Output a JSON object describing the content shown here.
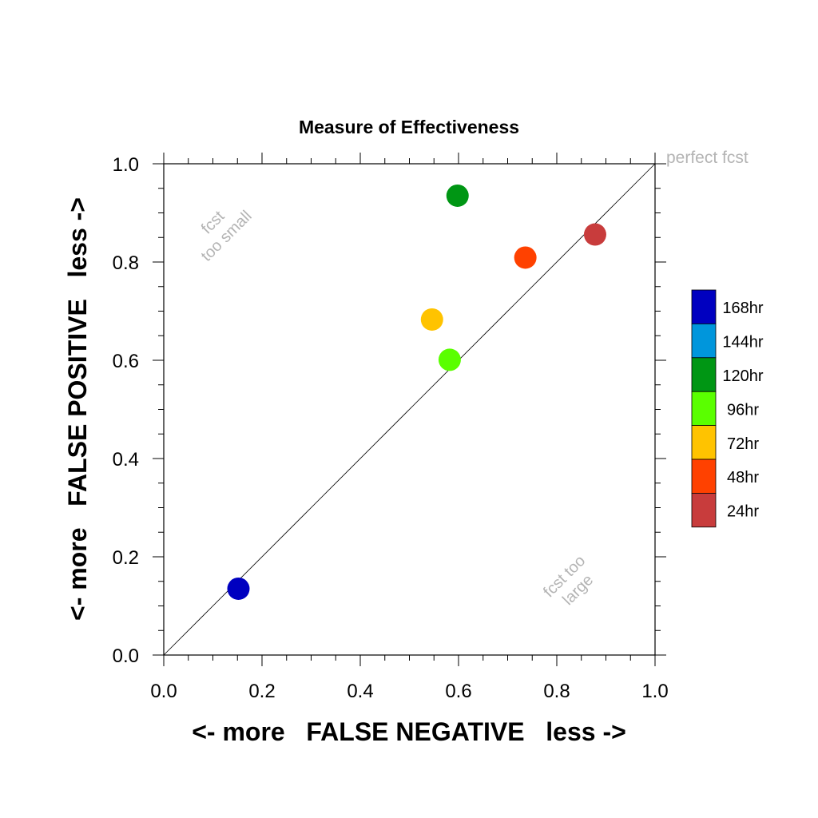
{
  "chart_data": {
    "type": "scatter",
    "title": "Measure of Effectiveness",
    "xlabel": "<- more   FALSE NEGATIVE   less ->",
    "ylabel": "<- more   FALSE POSITIVE   less ->",
    "xlim": [
      0.0,
      1.0
    ],
    "ylim": [
      0.0,
      1.0
    ],
    "x_ticks": [
      "0.0",
      "0.2",
      "0.4",
      "0.6",
      "0.8",
      "1.0"
    ],
    "y_ticks": [
      "0.0",
      "0.2",
      "0.4",
      "0.6",
      "0.8",
      "1.0"
    ],
    "grid": false,
    "reference_line": "diagonal y = x",
    "annotations": {
      "perfect": "perfect fcst",
      "too_small_line1": "fcst",
      "too_small_line2": "too small",
      "too_large_line1": "fcst too",
      "too_large_line2": "large"
    },
    "legend": {
      "placement": "right",
      "entries": [
        {
          "label": "168hr",
          "color": "#0000c0"
        },
        {
          "label": "144hr",
          "color": "#0096dc"
        },
        {
          "label": "120hr",
          "color": "#009614"
        },
        {
          "label": "96hr",
          "color": "#5aff00"
        },
        {
          "label": "72hr",
          "color": "#ffc300"
        },
        {
          "label": "48hr",
          "color": "#ff4100"
        },
        {
          "label": "24hr",
          "color": "#c83c3c"
        }
      ]
    },
    "points": [
      {
        "series": "168hr",
        "x": 0.152,
        "y": 0.135
      },
      {
        "series": "120hr",
        "x": 0.598,
        "y": 0.935
      },
      {
        "series": "96hr",
        "x": 0.582,
        "y": 0.601
      },
      {
        "series": "72hr",
        "x": 0.546,
        "y": 0.683
      },
      {
        "series": "48hr",
        "x": 0.736,
        "y": 0.809
      },
      {
        "series": "24hr",
        "x": 0.878,
        "y": 0.856
      }
    ]
  }
}
